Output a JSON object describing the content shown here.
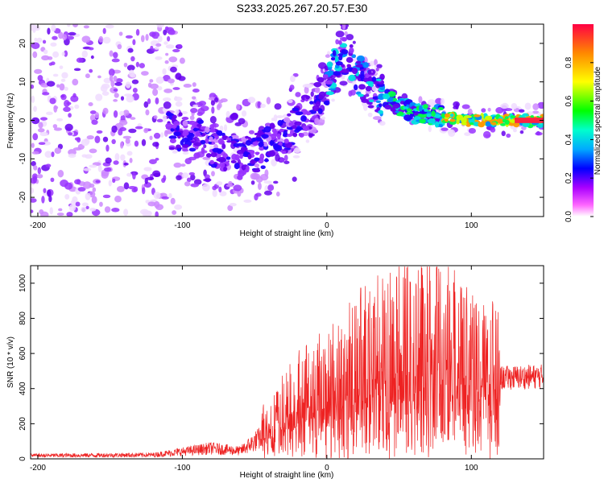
{
  "title": "S233.2025.267.20.57.E30",
  "chart_data": [
    {
      "type": "heatmap",
      "xlabel": "Height of straight line (km)",
      "ylabel": "Frequency (Hz)",
      "xlim": [
        -205,
        150
      ],
      "ylim": [
        -25,
        25
      ],
      "xticks": [
        -200,
        -100,
        0,
        100
      ],
      "yticks": [
        -20,
        -10,
        0,
        10,
        20
      ],
      "colorbar": {
        "label": "Normalized spectral amplitude",
        "range": [
          0.0,
          1.0
        ],
        "ticks": [
          "0.0",
          "0.2",
          "0.4",
          "0.6",
          "0.8"
        ],
        "colors": [
          "#ffffff",
          "#ff55ff",
          "#8800ff",
          "#0000ff",
          "#00ffff",
          "#00ff00",
          "#ffff00",
          "#ff8800",
          "#ff0000"
        ]
      },
      "ridge": {
        "description_points": [
          {
            "x": -100,
            "y": -3
          },
          {
            "x": -60,
            "y": -10
          },
          {
            "x": -30,
            "y": -5
          },
          {
            "x": -5,
            "y": 5
          },
          {
            "x": 10,
            "y": 18
          },
          {
            "x": 30,
            "y": 8
          },
          {
            "x": 60,
            "y": 2
          },
          {
            "x": 100,
            "y": 0
          },
          {
            "x": 150,
            "y": 0
          }
        ]
      }
    },
    {
      "type": "line",
      "xlabel": "Height of straight line (km)",
      "ylabel": "SNR (10 * v/v)",
      "xlim": [
        -205,
        150
      ],
      "ylim": [
        0,
        1100
      ],
      "xticks": [
        -200,
        -100,
        0,
        100
      ],
      "yticks": [
        0,
        200,
        400,
        600,
        800,
        1000
      ],
      "color": "#ee2222",
      "envelope": [
        {
          "x": -205,
          "y": 25
        },
        {
          "x": -120,
          "y": 30
        },
        {
          "x": -80,
          "y": 80
        },
        {
          "x": -60,
          "y": 60
        },
        {
          "x": -40,
          "y": 200
        },
        {
          "x": -20,
          "y": 330
        },
        {
          "x": 0,
          "y": 420
        },
        {
          "x": 20,
          "y": 500
        },
        {
          "x": 35,
          "y": 560
        },
        {
          "x": 50,
          "y": 600
        },
        {
          "x": 75,
          "y": 620
        },
        {
          "x": 100,
          "y": 520
        },
        {
          "x": 120,
          "y": 460
        },
        {
          "x": 150,
          "y": 470
        }
      ]
    }
  ]
}
